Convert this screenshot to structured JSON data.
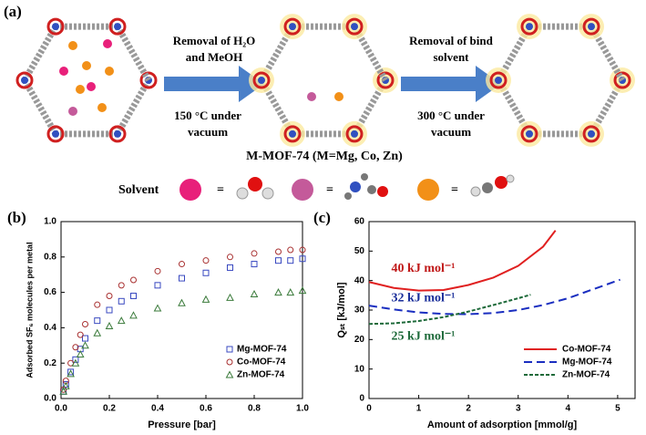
{
  "schematic": {
    "panel_label": "(a)",
    "step1": [
      "Removal of H₂O",
      "and MeOH"
    ],
    "step1_condition": [
      "150 °C under",
      "vacuum"
    ],
    "step2": [
      "Removal of bind",
      "solvent"
    ],
    "step2_condition": [
      "300 °C under",
      "vacuum"
    ],
    "caption": "M-MOF-74 (M=Mg, Co, Zn)",
    "solvent_label": "Solvent",
    "equals": "="
  },
  "chart_data": [
    {
      "type": "scatter",
      "panel_label": "(b)",
      "x_label": "Pressure [bar]",
      "y_label": "Adsorbed SF₆ molecules per metal",
      "x": [
        0.01,
        0.02,
        0.04,
        0.06,
        0.08,
        0.1,
        0.15,
        0.2,
        0.25,
        0.3,
        0.4,
        0.5,
        0.6,
        0.7,
        0.8,
        0.9,
        0.95,
        1.0
      ],
      "series": [
        {
          "name": "Mg-MOF-74",
          "color": "#3848c0",
          "marker": "square",
          "values": [
            0.04,
            0.08,
            0.15,
            0.22,
            0.28,
            0.34,
            0.44,
            0.5,
            0.55,
            0.58,
            0.64,
            0.68,
            0.71,
            0.74,
            0.76,
            0.78,
            0.78,
            0.79
          ]
        },
        {
          "name": "Co-MOF-74",
          "color": "#a83030",
          "marker": "circle",
          "values": [
            0.05,
            0.1,
            0.2,
            0.29,
            0.36,
            0.42,
            0.53,
            0.58,
            0.64,
            0.67,
            0.72,
            0.76,
            0.78,
            0.8,
            0.82,
            0.83,
            0.84,
            0.84
          ]
        },
        {
          "name": "Zn-MOF-74",
          "color": "#3a7a3a",
          "marker": "triangle",
          "values": [
            0.04,
            0.07,
            0.14,
            0.2,
            0.25,
            0.3,
            0.37,
            0.41,
            0.44,
            0.47,
            0.51,
            0.54,
            0.56,
            0.57,
            0.59,
            0.6,
            0.6,
            0.61
          ]
        }
      ],
      "xlim": [
        0,
        1
      ],
      "ylim": [
        0,
        1
      ],
      "xticks": [
        {
          "value": 0,
          "label": "0.0"
        },
        0.2,
        0.4,
        0.6,
        0.8,
        {
          "value": 1,
          "label": "1.0"
        }
      ],
      "yticks": [
        {
          "value": 0,
          "label": "0.0"
        },
        0.2,
        0.4,
        0.6,
        0.8,
        {
          "value": 1,
          "label": "1.0"
        }
      ],
      "legend": "lower-right"
    },
    {
      "type": "line",
      "panel_label": "(c)",
      "x_label": "Amount of adsorption [mmol/g]",
      "y_label": "Qₛₜ [kJ/mol]",
      "series": [
        {
          "name": "Co-MOF-74",
          "color": "#e02020",
          "dash": "solid",
          "x": [
            0,
            0.5,
            1,
            1.5,
            2,
            2.5,
            3,
            3.5,
            3.75
          ],
          "values": [
            39.5,
            37.5,
            36.6,
            36.8,
            38.5,
            41,
            45,
            51.5,
            57
          ]
        },
        {
          "name": "Mg-MOF-74",
          "color": "#1a2ec0",
          "dash": "dashed",
          "x": [
            0,
            0.5,
            1,
            1.5,
            2,
            2.5,
            3,
            3.5,
            4,
            4.5,
            5.05
          ],
          "values": [
            31.5,
            30.2,
            29.2,
            28.7,
            28.6,
            29,
            30,
            31.7,
            34,
            37,
            40.3
          ]
        },
        {
          "name": "Zn-MOF-74",
          "color": "#1e6a3a",
          "dash": "dotted",
          "x": [
            0,
            0.5,
            1,
            1.5,
            2,
            2.5,
            3,
            3.25
          ],
          "values": [
            25.3,
            25.5,
            26.3,
            27.6,
            29.5,
            31.7,
            34,
            35.2
          ]
        }
      ],
      "annotations": [
        {
          "text": "40 kJ mol⁻¹",
          "color": "#c01818",
          "x": 0.45,
          "y": 44
        },
        {
          "text": "32 kJ mol⁻¹",
          "color": "#1a2e9a",
          "x": 0.45,
          "y": 34
        },
        {
          "text": "25 kJ mol⁻¹",
          "color": "#1e6a3a",
          "x": 0.45,
          "y": 21
        }
      ],
      "xlim": [
        0,
        5.35
      ],
      "ylim": [
        0,
        60
      ],
      "xticks": [
        0,
        1,
        2,
        3,
        4,
        5
      ],
      "yticks": [
        0,
        10,
        20,
        30,
        40,
        50,
        60
      ],
      "legend": "lower-right"
    }
  ]
}
